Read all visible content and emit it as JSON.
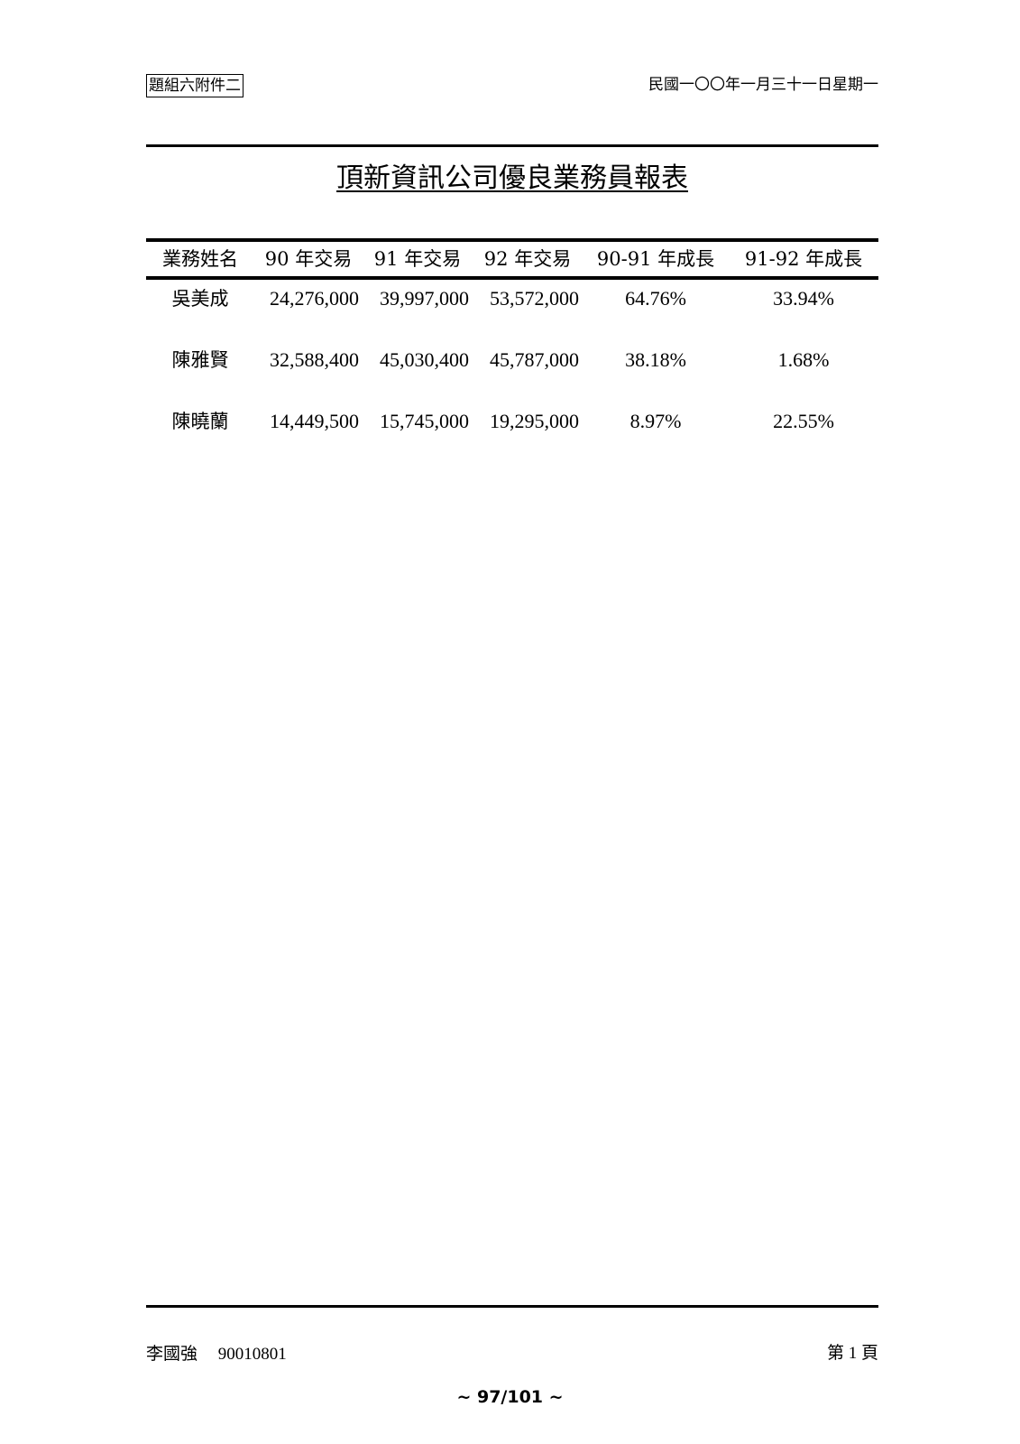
{
  "header": {
    "tag": "題組六附件二",
    "date": "民國一〇〇年一月三十一日星期一"
  },
  "title": "頂新資訊公司優良業務員報表",
  "table": {
    "columns": [
      "業務姓名",
      "90 年交易",
      "91 年交易",
      "92 年交易",
      "90-91 年成長",
      "91-92 年成長"
    ],
    "rows": [
      [
        "吳美成",
        "24,276,000",
        "39,997,000",
        "53,572,000",
        "64.76%",
        "33.94%"
      ],
      [
        "陳雅賢",
        "32,588,400",
        "45,030,400",
        "45,787,000",
        "38.18%",
        "1.68%"
      ],
      [
        "陳曉蘭",
        "14,449,500",
        "15,745,000",
        "19,295,000",
        "8.97%",
        "22.55%"
      ]
    ]
  },
  "footer": {
    "author": "李國強",
    "id": "90010801",
    "page_label": "第 1 頁",
    "page_counter": "~ 97/101 ~"
  }
}
